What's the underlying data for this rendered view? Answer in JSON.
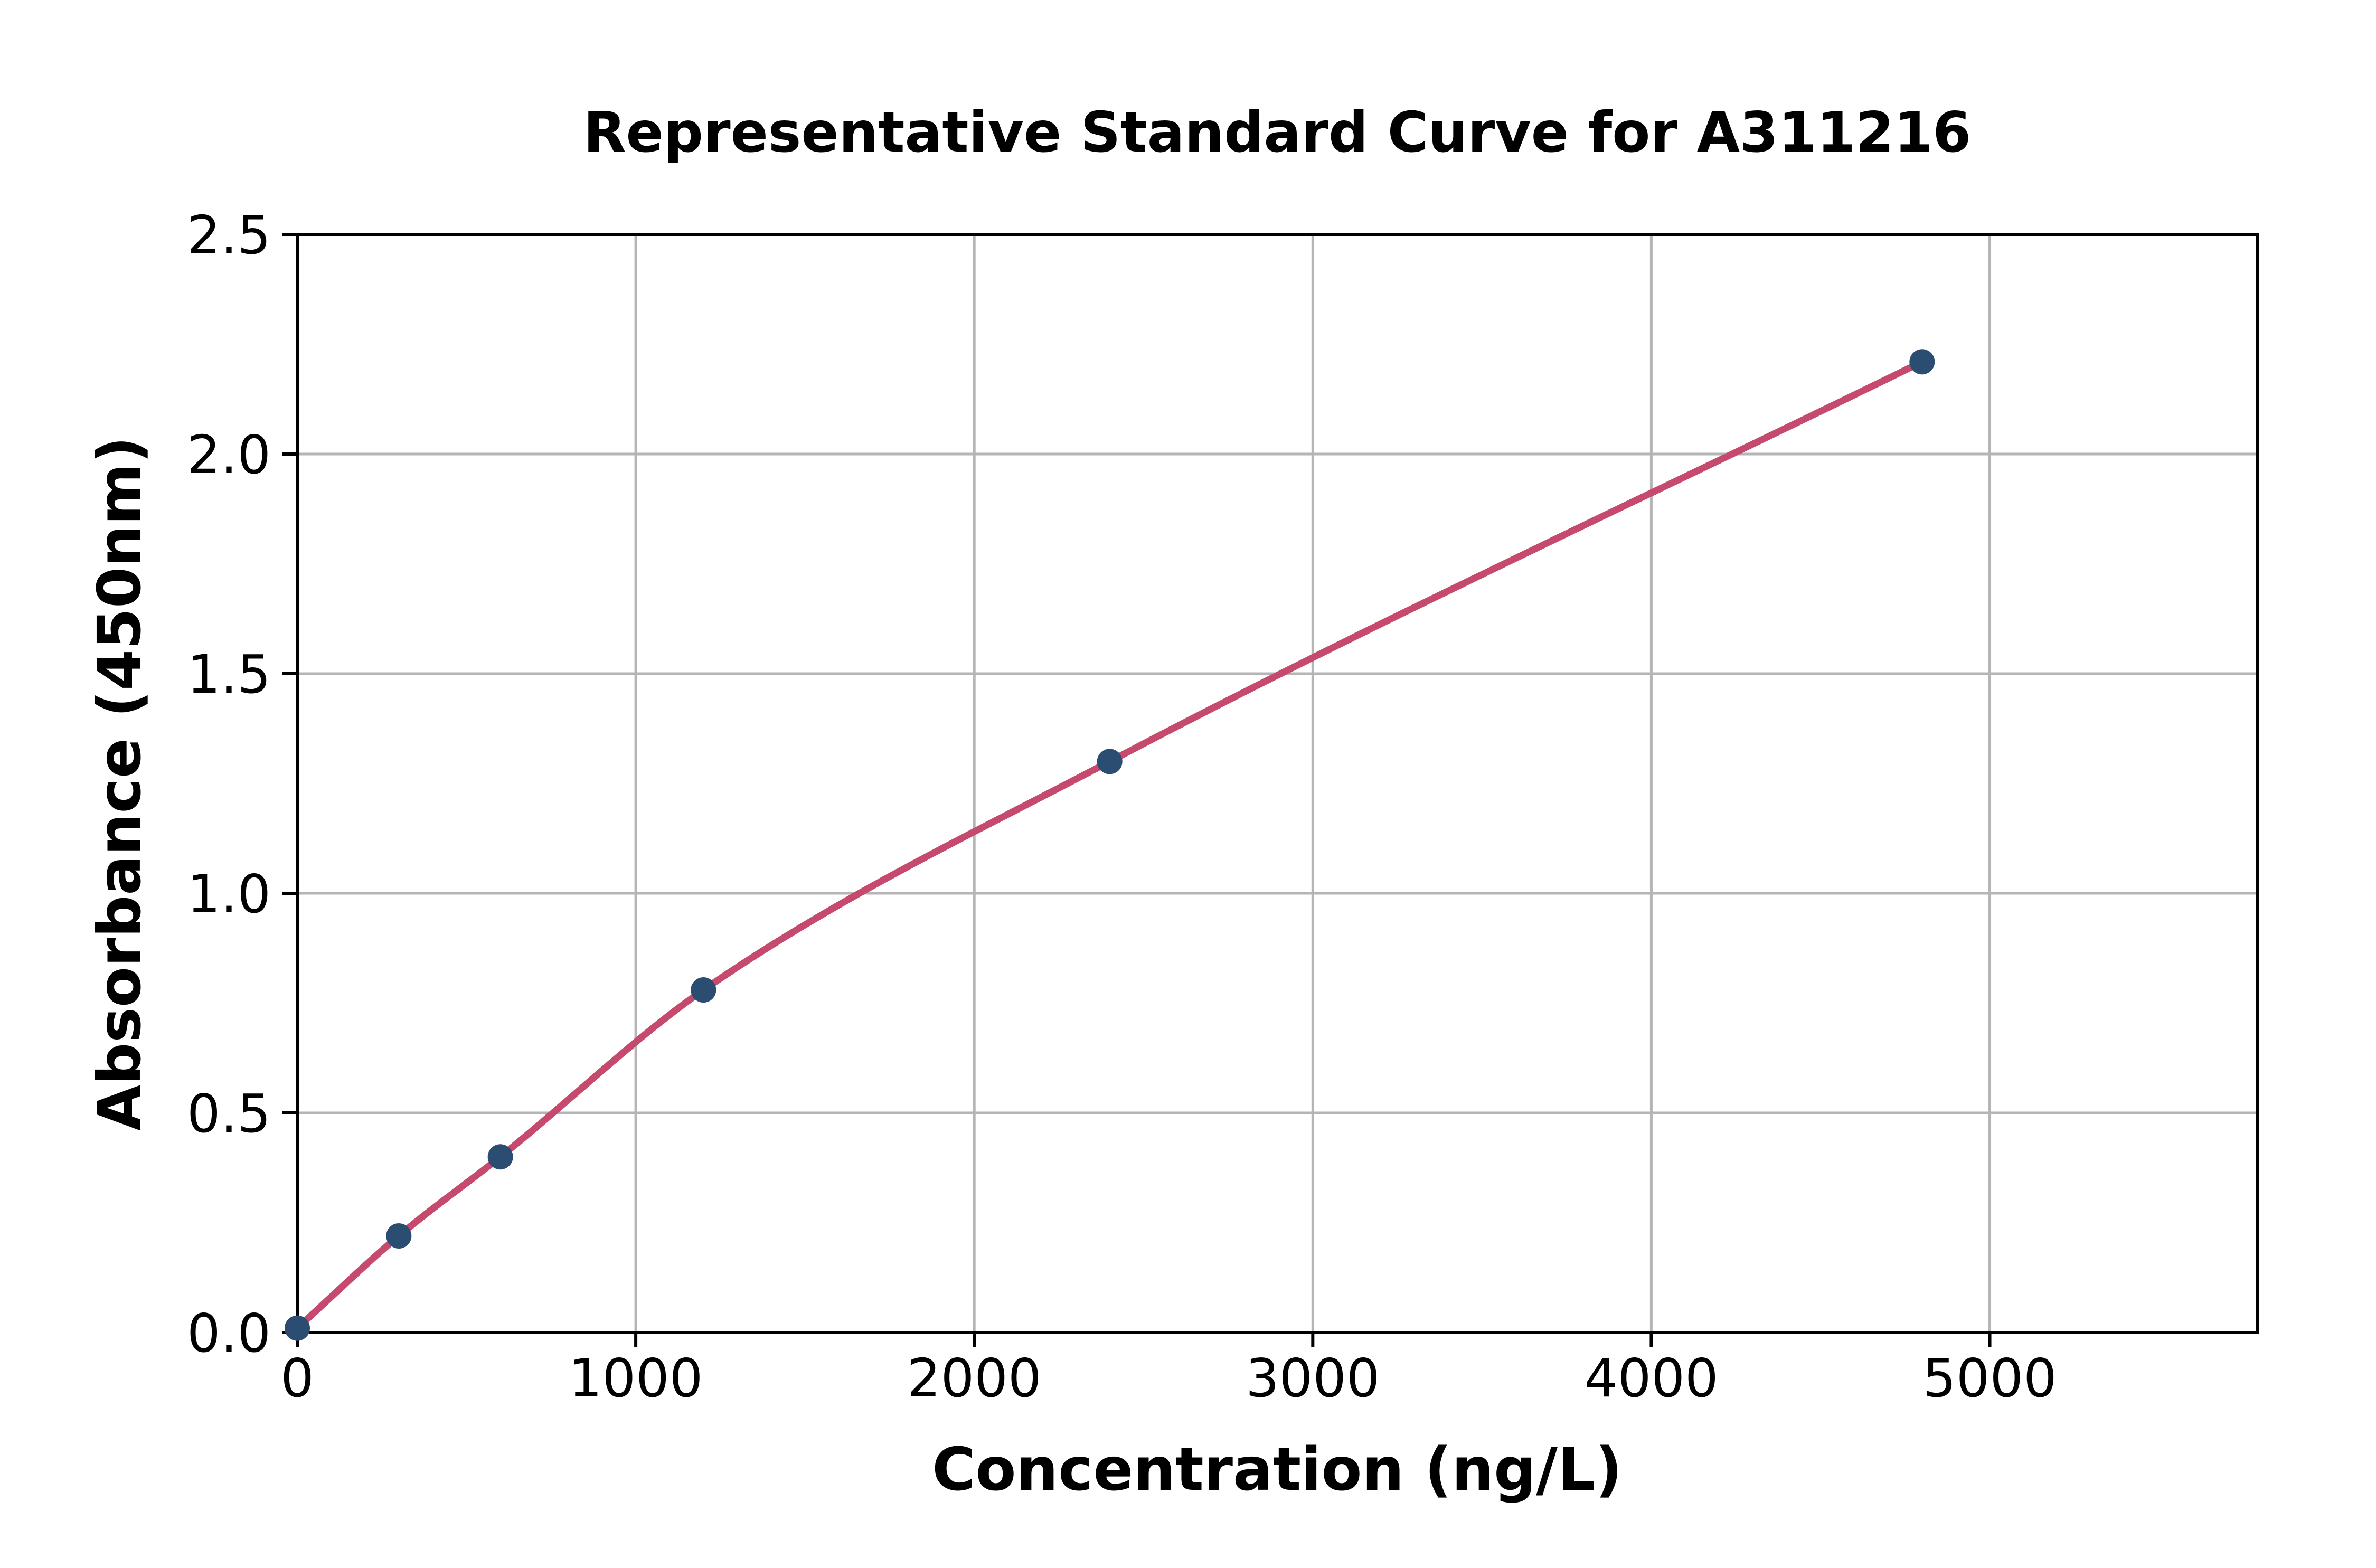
{
  "figure": {
    "background": "#ffffff"
  },
  "chart_data": {
    "type": "scatter",
    "title": "Representative Standard Curve for A311216",
    "xlabel": "Concentration (ng/L)",
    "ylabel": "Absorbance (450nm)",
    "series": [
      {
        "name": "standards",
        "x": [
          0,
          300,
          600,
          1200,
          2400,
          4800
        ],
        "y": [
          0.01,
          0.22,
          0.4,
          0.78,
          1.3,
          2.21
        ]
      }
    ],
    "fit_curve_through_points": true,
    "xlim": [
      0,
      5790
    ],
    "ylim": [
      0,
      2.5
    ],
    "xticks": [
      0,
      1000,
      2000,
      3000,
      4000,
      5000
    ],
    "xtick_labels": [
      "0",
      "1000",
      "2000",
      "3000",
      "4000",
      "5000"
    ],
    "yticks": [
      0.0,
      0.5,
      1.0,
      1.5,
      2.0,
      2.5
    ],
    "ytick_labels": [
      "0.0",
      "0.5",
      "1.0",
      "1.5",
      "2.0",
      "2.5"
    ],
    "grid": true,
    "legend": "none",
    "colors": {
      "curve": "#c6496e",
      "marker": "#2b4d72",
      "grid": "#b5b5b5",
      "spine": "#000000",
      "text": "#000000",
      "background": "#ffffff"
    }
  }
}
